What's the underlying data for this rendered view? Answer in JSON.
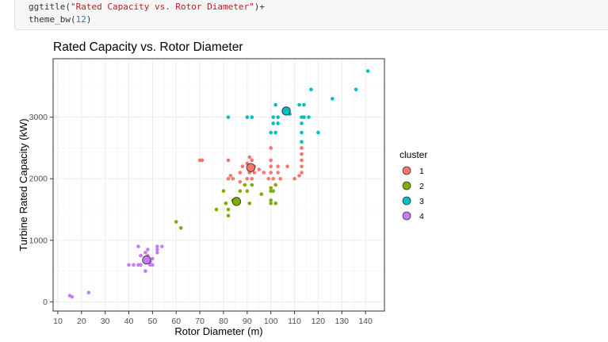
{
  "code": {
    "line1_fn": "ggtitle(",
    "line1_str": "\"Rated Capacity vs. Rotor Diameter\"",
    "line1_end": ")+",
    "line2_fn": "theme_bw(",
    "line2_num": "12",
    "line2_end": ")"
  },
  "chart_data": {
    "type": "scatter",
    "title": "Rated Capacity vs. Rotor Diameter",
    "xlabel": "Rotor Diameter (m)",
    "ylabel": "Turbine Rated Capacity (kW)",
    "xlim": [
      8,
      148
    ],
    "ylim": [
      -150,
      3950
    ],
    "xticks": [
      10,
      20,
      30,
      40,
      50,
      60,
      70,
      80,
      90,
      100,
      110,
      120,
      130,
      140
    ],
    "yticks": [
      0,
      1000,
      2000,
      3000
    ],
    "grid": true,
    "legend_title": "cluster",
    "legend_position": "right",
    "series": [
      {
        "name": "1",
        "color": "#F8766D",
        "points": [
          [
            70,
            2300
          ],
          [
            71,
            2300
          ],
          [
            82,
            2300
          ],
          [
            83,
            2050
          ],
          [
            82,
            2000
          ],
          [
            84,
            2000
          ],
          [
            87,
            1950
          ],
          [
            87,
            2100
          ],
          [
            88,
            2200
          ],
          [
            90,
            2250
          ],
          [
            90,
            2000
          ],
          [
            91,
            2100
          ],
          [
            91,
            2350
          ],
          [
            92,
            2300
          ],
          [
            92,
            2000
          ],
          [
            93,
            2200
          ],
          [
            93,
            2100
          ],
          [
            95,
            2150
          ],
          [
            97,
            2100
          ],
          [
            99,
            2000
          ],
          [
            100,
            2500
          ],
          [
            100,
            2300
          ],
          [
            100,
            2200
          ],
          [
            100,
            2100
          ],
          [
            101,
            2000
          ],
          [
            103,
            2200
          ],
          [
            103,
            2100
          ],
          [
            104,
            2000
          ],
          [
            107,
            2200
          ],
          [
            110,
            2000
          ],
          [
            112,
            2050
          ],
          [
            113,
            2500
          ],
          [
            113,
            2400
          ],
          [
            113,
            2300
          ],
          [
            113,
            2200
          ],
          [
            113,
            2100
          ]
        ],
        "centroid": [
          91.5,
          2180
        ]
      },
      {
        "name": "2",
        "color": "#7CAE00",
        "points": [
          [
            60,
            1300
          ],
          [
            62,
            1200
          ],
          [
            77,
            1500
          ],
          [
            80,
            1800
          ],
          [
            81,
            1600
          ],
          [
            82,
            1500
          ],
          [
            82,
            1400
          ],
          [
            84,
            1650
          ],
          [
            86,
            1600
          ],
          [
            87,
            1800
          ],
          [
            89,
            1900
          ],
          [
            90,
            1800
          ],
          [
            91,
            1600
          ],
          [
            92,
            1900
          ],
          [
            96,
            1750
          ],
          [
            100,
            1850
          ],
          [
            100,
            1800
          ],
          [
            100,
            1650
          ],
          [
            100,
            1600
          ],
          [
            101,
            1800
          ],
          [
            102,
            1900
          ],
          [
            102,
            1600
          ]
        ],
        "centroid": [
          85.5,
          1630
        ]
      },
      {
        "name": "3",
        "color": "#00BFC4",
        "points": [
          [
            82,
            3000
          ],
          [
            90,
            3000
          ],
          [
            92,
            3000
          ],
          [
            100,
            2750
          ],
          [
            101,
            2900
          ],
          [
            101,
            3000
          ],
          [
            102,
            2750
          ],
          [
            102,
            3200
          ],
          [
            103,
            3000
          ],
          [
            103,
            2900
          ],
          [
            108,
            3050
          ],
          [
            112,
            3200
          ],
          [
            113,
            3000
          ],
          [
            113,
            2900
          ],
          [
            113,
            2750
          ],
          [
            113,
            2600
          ],
          [
            114,
            3000
          ],
          [
            114,
            3200
          ],
          [
            116,
            3000
          ],
          [
            117,
            3450
          ],
          [
            120,
            2750
          ],
          [
            126,
            3300
          ],
          [
            136,
            3450
          ],
          [
            141,
            3750
          ]
        ],
        "centroid": [
          106.5,
          3100
        ]
      },
      {
        "name": "4",
        "color": "#C77CFF",
        "points": [
          [
            15,
            100
          ],
          [
            16,
            80
          ],
          [
            23,
            150
          ],
          [
            40,
            600
          ],
          [
            42,
            600
          ],
          [
            44,
            600
          ],
          [
            44,
            900
          ],
          [
            45,
            750
          ],
          [
            45,
            600
          ],
          [
            47,
            800
          ],
          [
            47,
            500
          ],
          [
            48,
            850
          ],
          [
            48,
            750
          ],
          [
            48,
            700
          ],
          [
            49,
            650
          ],
          [
            49,
            600
          ],
          [
            50,
            600
          ],
          [
            50,
            700
          ],
          [
            52,
            900
          ],
          [
            52,
            850
          ],
          [
            52,
            800
          ],
          [
            54,
            900
          ]
        ],
        "centroid": [
          47.5,
          680
        ]
      }
    ]
  }
}
